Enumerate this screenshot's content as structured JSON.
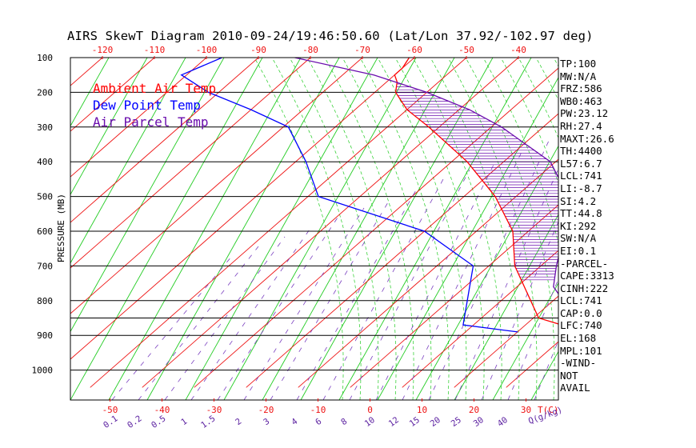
{
  "chart_data": {
    "type": "line",
    "title": "AIRS SkewT Diagram 2010-09-24/19:46:50.60 (Lat/Lon 37.92/-102.97 deg)",
    "ylabel": "PRESSURE (MB)",
    "xlabel_bottom": "T(C)",
    "mixing_ratio_label": "Q(g/kg)",
    "pressure_ticks": [
      100,
      200,
      300,
      400,
      500,
      600,
      700,
      800,
      900,
      1000
    ],
    "top_temperature_ticks": [
      -120,
      -110,
      -100,
      -90,
      -80,
      -70,
      -60,
      -50,
      -40
    ],
    "bottom_temperature_ticks": [
      -50,
      -40,
      -30,
      -20,
      -10,
      0,
      10,
      20,
      30
    ],
    "mixing_ratio_ticks": [
      "0.1",
      "0.2",
      "0.5",
      "1",
      "1.5",
      "2",
      "3",
      "4",
      "6",
      "8",
      "10",
      "12",
      "15",
      "20",
      "25",
      "30",
      "40"
    ],
    "legend": [
      {
        "name": "Ambient Air Temp",
        "color": "#ff0000"
      },
      {
        "name": "Dew Point Temp",
        "color": "#0000ff"
      },
      {
        "name": "Air Parcel Temp",
        "color": "#6a0dad"
      }
    ],
    "series": [
      {
        "name": "Ambient Air Temp",
        "color": "#ff0000",
        "points": [
          [
            890,
            33
          ],
          [
            850,
            21
          ],
          [
            700,
            5
          ],
          [
            600,
            -3
          ],
          [
            500,
            -14
          ],
          [
            400,
            -27
          ],
          [
            300,
            -42
          ],
          [
            250,
            -50
          ],
          [
            200,
            -56
          ],
          [
            170,
            -58
          ],
          [
            150,
            -60
          ],
          [
            130,
            -60
          ],
          [
            100,
            -61
          ]
        ]
      },
      {
        "name": "Dew Point Temp",
        "color": "#0000ff",
        "points": [
          [
            890,
            20
          ],
          [
            870,
            8
          ],
          [
            700,
            -3
          ],
          [
            600,
            -20
          ],
          [
            500,
            -48
          ],
          [
            400,
            -58
          ],
          [
            300,
            -69
          ],
          [
            250,
            -80
          ],
          [
            200,
            -92
          ],
          [
            150,
            -101
          ],
          [
            100,
            -97
          ]
        ]
      },
      {
        "name": "Air Parcel Temp",
        "color": "#6a0dad",
        "points": [
          [
            890,
            33
          ],
          [
            760,
            17
          ],
          [
            700,
            13
          ],
          [
            600,
            7
          ],
          [
            500,
            0
          ],
          [
            400,
            -11
          ],
          [
            300,
            -28
          ],
          [
            250,
            -38
          ],
          [
            200,
            -50
          ],
          [
            150,
            -64
          ],
          [
            100,
            -83
          ]
        ]
      }
    ],
    "grid": true
  },
  "indices": [
    "TP:100",
    "MW:N/A",
    "FRZ:586",
    "WB0:463",
    "PW:23.12",
    "RH:27.4",
    "MAXT:26.6",
    "TH:4400",
    "L57:6.7",
    "LCL:741",
    "LI:-8.7",
    "SI:4.2",
    "TT:44.8",
    "KI:292",
    "SW:N/A",
    "EI:0.1",
    "-PARCEL-",
    "CAPE:3313",
    "CINH:222",
    "LCL:741",
    "CAP:0.0",
    "LFC:740",
    "EL:168",
    "MPL:101",
    "-WIND-",
    "NOT",
    "AVAIL"
  ]
}
